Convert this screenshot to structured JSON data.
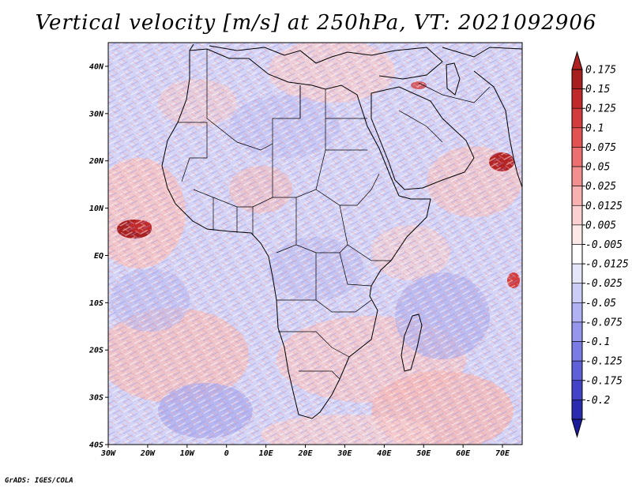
{
  "title": "Vertical velocity [m/s] at 250hPa, VT: 2021092906",
  "credit": "GrADS: IGES/COLA",
  "map": {
    "lon_range": [
      -30,
      75
    ],
    "lat_range": [
      -40,
      45
    ],
    "lat_ticks": [
      "40N",
      "30N",
      "20N",
      "10N",
      "EQ",
      "10S",
      "20S",
      "30S",
      "40S"
    ],
    "lon_ticks": [
      "30W",
      "20W",
      "10W",
      "0",
      "10E",
      "20E",
      "30E",
      "40E",
      "50E",
      "60E",
      "70E"
    ]
  },
  "colorbar": {
    "levels": [
      {
        "label": "0.175",
        "color": "#a81f1f"
      },
      {
        "label": "0.15",
        "color": "#c02a2a"
      },
      {
        "label": "0.125",
        "color": "#d23c3c"
      },
      {
        "label": "0.1",
        "color": "#e25252"
      },
      {
        "label": "0.075",
        "color": "#ec7070"
      },
      {
        "label": "0.05",
        "color": "#f28f8f"
      },
      {
        "label": "0.025",
        "color": "#f7b1b1"
      },
      {
        "label": "0.0125",
        "color": "#fbd0d0"
      },
      {
        "label": "0.005",
        "color": "#fde8e8"
      },
      {
        "label": "-0.005",
        "color": "#ffffff"
      },
      {
        "label": "-0.0125",
        "color": "#e6e6fb"
      },
      {
        "label": "-0.025",
        "color": "#cccdf7"
      },
      {
        "label": "-0.05",
        "color": "#b1b2f3"
      },
      {
        "label": "-0.075",
        "color": "#9596ec"
      },
      {
        "label": "-0.1",
        "color": "#7a7be4"
      },
      {
        "label": "-0.125",
        "color": "#5f5fd8"
      },
      {
        "label": "-0.175",
        "color": "#4343c8"
      },
      {
        "label": "-0.2",
        "color": "#2b2bb0"
      }
    ],
    "top_color": "#b02121",
    "bottom_color": "#1d1d9c"
  }
}
